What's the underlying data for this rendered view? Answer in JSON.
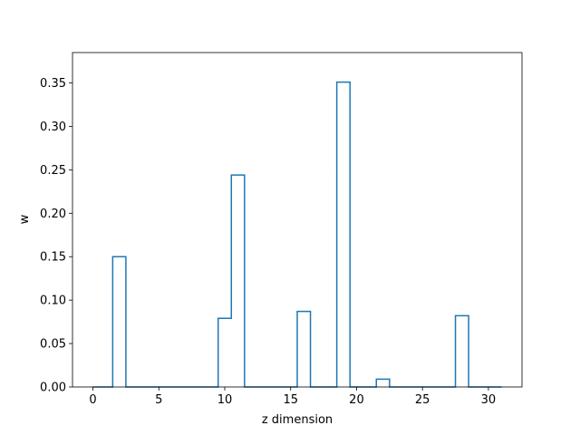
{
  "chart_data": {
    "type": "bar",
    "style": "step-outline",
    "xlabel": "z dimension",
    "ylabel": "w",
    "xlim": [
      -1.55,
      32.55
    ],
    "ylim": [
      0,
      0.385
    ],
    "x_ticks": [
      0,
      5,
      10,
      15,
      20,
      25,
      30
    ],
    "y_ticks": [
      0.0,
      0.05,
      0.1,
      0.15,
      0.2,
      0.25,
      0.3,
      0.35
    ],
    "y_tick_labels": [
      "0.00",
      "0.05",
      "0.10",
      "0.15",
      "0.20",
      "0.25",
      "0.30",
      "0.35"
    ],
    "x_tick_labels": [
      "0",
      "5",
      "10",
      "15",
      "20",
      "25",
      "30"
    ],
    "x": [
      0,
      1,
      2,
      3,
      4,
      5,
      6,
      7,
      8,
      9,
      10,
      11,
      12,
      13,
      14,
      15,
      16,
      17,
      18,
      19,
      20,
      21,
      22,
      23,
      24,
      25,
      26,
      27,
      28,
      29,
      30,
      31
    ],
    "values": [
      0,
      0,
      0.15,
      0,
      0,
      0,
      0,
      0,
      0,
      0,
      0.079,
      0.244,
      0,
      0,
      0,
      0,
      0.087,
      0,
      0,
      0.351,
      0,
      0,
      0.009,
      0,
      0,
      0,
      0,
      0,
      0.082,
      0,
      0,
      0
    ],
    "color": "#1f77b4",
    "grid": false
  }
}
